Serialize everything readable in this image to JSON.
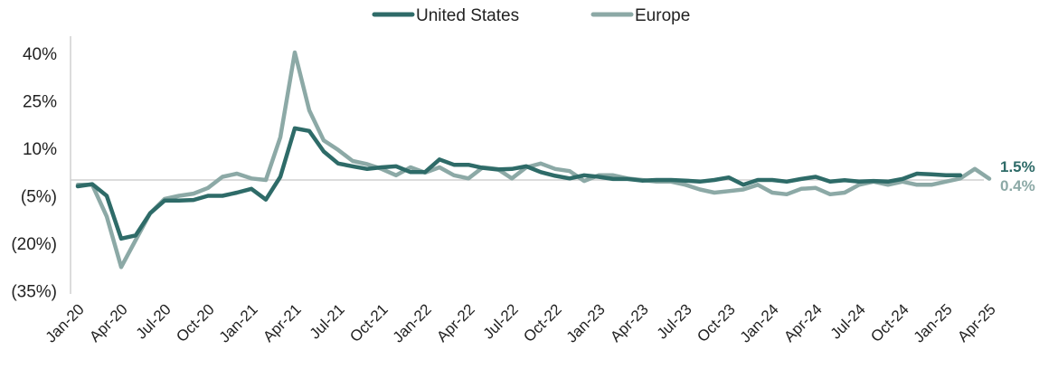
{
  "chart_data": {
    "type": "line",
    "ylim": [
      -35,
      45
    ],
    "yticks": [
      40,
      25,
      10,
      -5,
      -20,
      -35
    ],
    "ytick_labels": [
      "40%",
      "25%",
      "10%",
      "(5%)",
      "(20%)",
      "(35%)"
    ],
    "xtick_labels": [
      "Jan-20",
      "Apr-20",
      "Jul-20",
      "Oct-20",
      "Jan-21",
      "Apr-21",
      "Jul-21",
      "Oct-21",
      "Jan-22",
      "Apr-22",
      "Jul-22",
      "Oct-22",
      "Jan-23",
      "Apr-23",
      "Jul-23",
      "Oct-23",
      "Jan-24",
      "Apr-24",
      "Jul-24",
      "Oct-24",
      "Jan-25",
      "Apr-25"
    ],
    "grid": false,
    "legend_position": "top-center",
    "series": [
      {
        "name": "United States",
        "color": "#2e6b68",
        "end_label": "1.5%",
        "values": [
          -2.0,
          -1.3,
          -5.0,
          -18.5,
          -17.5,
          -10.5,
          -6.5,
          -6.5,
          -6.3,
          -5.0,
          -5.0,
          -4.0,
          -2.8,
          -6.2,
          1.0,
          16.3,
          15.5,
          9.0,
          5.2,
          4.3,
          3.5,
          4.0,
          4.3,
          2.5,
          2.5,
          6.5,
          4.8,
          4.8,
          3.8,
          3.3,
          3.5,
          4.3,
          2.5,
          1.3,
          0.5,
          1.5,
          1.0,
          0.3,
          0.3,
          -0.2,
          0.0,
          0.0,
          -0.2,
          -0.5,
          0.0,
          0.8,
          -1.5,
          0.0,
          0.0,
          -0.5,
          0.3,
          1.0,
          -0.5,
          -0.1,
          -0.5,
          -0.3,
          -0.5,
          0.3,
          2.0,
          1.8,
          1.5,
          1.5
        ]
      },
      {
        "name": "Europe",
        "color": "#8ca9a6",
        "end_label": "0.4%",
        "values": [
          -1.5,
          -1.5,
          -11.5,
          -27.5,
          -19.0,
          -10.5,
          -6.0,
          -5.0,
          -4.3,
          -2.5,
          1.0,
          2.0,
          0.5,
          0.0,
          13.5,
          40.3,
          22.0,
          12.5,
          9.5,
          6.0,
          5.0,
          3.5,
          1.5,
          4.0,
          2.3,
          4.0,
          1.5,
          0.5,
          4.0,
          3.5,
          0.5,
          4.0,
          5.2,
          3.5,
          2.8,
          -0.3,
          1.5,
          1.5,
          0.5,
          0.0,
          -0.5,
          -0.5,
          -1.5,
          -3.0,
          -4.0,
          -3.5,
          -3.0,
          -1.5,
          -4.0,
          -4.5,
          -2.8,
          -2.5,
          -4.5,
          -4.0,
          -1.5,
          -0.5,
          -1.5,
          -0.5,
          -1.5,
          -1.5,
          -0.5,
          0.5,
          3.5,
          0.4
        ]
      }
    ]
  }
}
